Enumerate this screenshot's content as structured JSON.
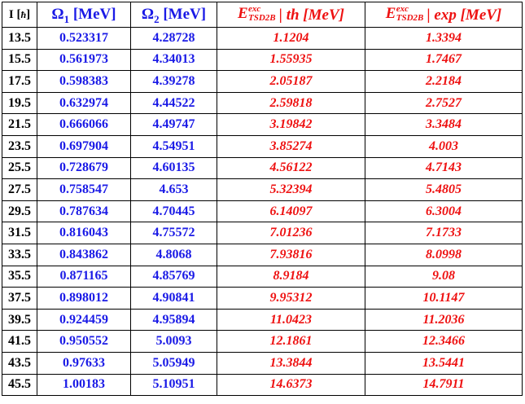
{
  "table": {
    "headers": {
      "i_label": "I",
      "i_unit_open": "[",
      "i_unit_symbol": "ħ",
      "i_unit_close": "]",
      "omega1_symbol": "Ω",
      "omega1_sub": "1",
      "omega1_unit": "[MeV]",
      "omega2_symbol": "Ω",
      "omega2_sub": "2",
      "omega2_unit": "[MeV]",
      "e_symbol": "E",
      "e_superscript": "exc",
      "e_subscript": "TSD2B",
      "th_suffix": "| th [MeV]",
      "exp_suffix": "| exp [MeV]"
    },
    "rows": [
      {
        "i": "13.5",
        "omega1": "0.523317",
        "omega2": "4.28728",
        "e_th": "1.1204",
        "e_exp": "1.3394"
      },
      {
        "i": "15.5",
        "omega1": "0.561973",
        "omega2": "4.34013",
        "e_th": "1.55935",
        "e_exp": "1.7467"
      },
      {
        "i": "17.5",
        "omega1": "0.598383",
        "omega2": "4.39278",
        "e_th": "2.05187",
        "e_exp": "2.2184"
      },
      {
        "i": "19.5",
        "omega1": "0.632974",
        "omega2": "4.44522",
        "e_th": "2.59818",
        "e_exp": "2.7527"
      },
      {
        "i": "21.5",
        "omega1": "0.666066",
        "omega2": "4.49747",
        "e_th": "3.19842",
        "e_exp": "3.3484"
      },
      {
        "i": "23.5",
        "omega1": "0.697904",
        "omega2": "4.54951",
        "e_th": "3.85274",
        "e_exp": "4.003"
      },
      {
        "i": "25.5",
        "omega1": "0.728679",
        "omega2": "4.60135",
        "e_th": "4.56122",
        "e_exp": "4.7143"
      },
      {
        "i": "27.5",
        "omega1": "0.758547",
        "omega2": "4.653",
        "e_th": "5.32394",
        "e_exp": "5.4805"
      },
      {
        "i": "29.5",
        "omega1": "0.787634",
        "omega2": "4.70445",
        "e_th": "6.14097",
        "e_exp": "6.3004"
      },
      {
        "i": "31.5",
        "omega1": "0.816043",
        "omega2": "4.75572",
        "e_th": "7.01236",
        "e_exp": "7.1733"
      },
      {
        "i": "33.5",
        "omega1": "0.843862",
        "omega2": "4.8068",
        "e_th": "7.93816",
        "e_exp": "8.0998"
      },
      {
        "i": "35.5",
        "omega1": "0.871165",
        "omega2": "4.85769",
        "e_th": "8.9184",
        "e_exp": "9.08"
      },
      {
        "i": "37.5",
        "omega1": "0.898012",
        "omega2": "4.90841",
        "e_th": "9.95312",
        "e_exp": "10.1147"
      },
      {
        "i": "39.5",
        "omega1": "0.924459",
        "omega2": "4.95894",
        "e_th": "11.0423",
        "e_exp": "11.2036"
      },
      {
        "i": "41.5",
        "omega1": "0.950552",
        "omega2": "5.0093",
        "e_th": "12.1861",
        "e_exp": "12.3466"
      },
      {
        "i": "43.5",
        "omega1": "0.97633",
        "omega2": "5.05949",
        "e_th": "13.3844",
        "e_exp": "13.5441"
      },
      {
        "i": "45.5",
        "omega1": "1.00183",
        "omega2": "5.10951",
        "e_th": "14.6373",
        "e_exp": "14.7911"
      }
    ]
  },
  "colors": {
    "text": "#000000",
    "omega_columns": "#1a1ae6",
    "energy_columns": "#ee1111",
    "border": "#000000",
    "background": "#ffffff"
  }
}
